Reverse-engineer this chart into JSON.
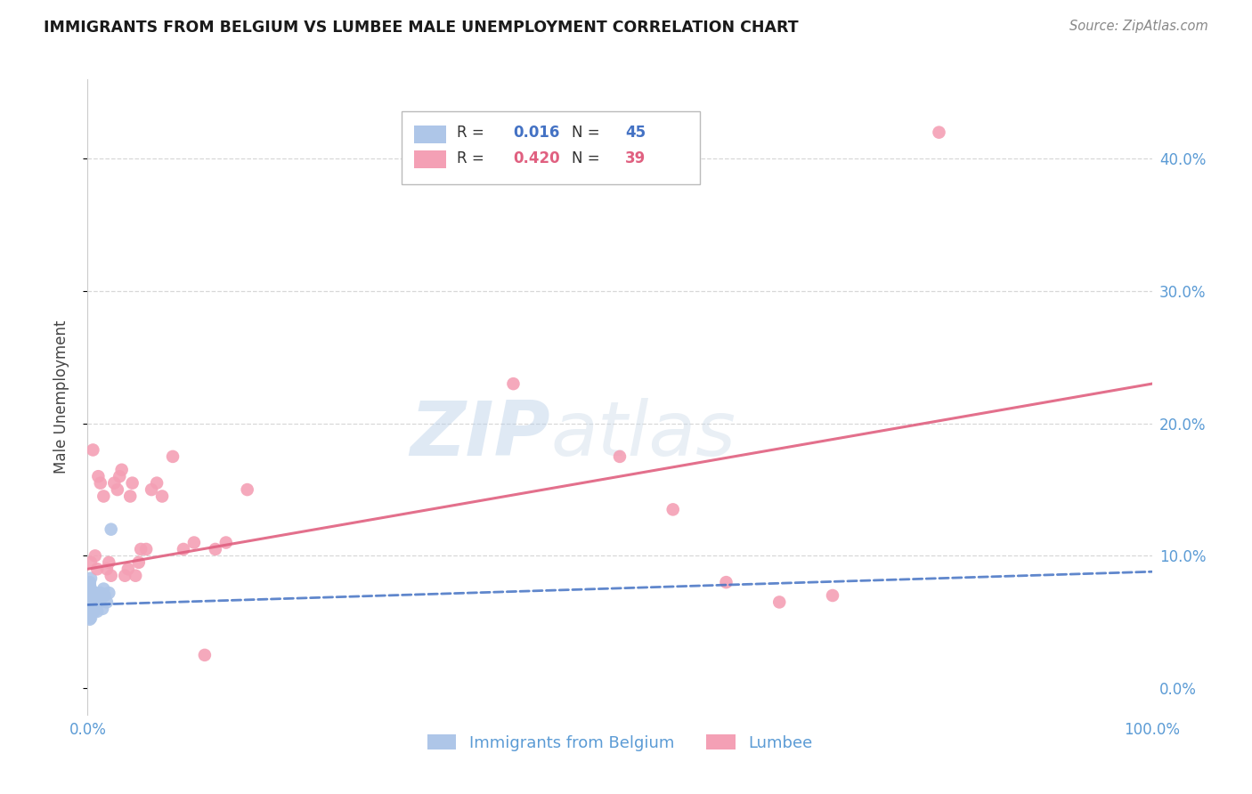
{
  "title": "IMMIGRANTS FROM BELGIUM VS LUMBEE MALE UNEMPLOYMENT CORRELATION CHART",
  "source": "Source: ZipAtlas.com",
  "ylabel": "Male Unemployment",
  "xlim": [
    0.0,
    1.0
  ],
  "ylim": [
    -0.02,
    0.46
  ],
  "yticks": [
    0.0,
    0.1,
    0.2,
    0.3,
    0.4
  ],
  "ytick_labels_right": [
    "0.0%",
    "10.0%",
    "20.0%",
    "30.0%",
    "40.0%"
  ],
  "xticks": [
    0.0,
    0.2,
    0.4,
    0.6,
    0.8,
    1.0
  ],
  "xtick_labels": [
    "0.0%",
    "",
    "",
    "",
    "",
    "100.0%"
  ],
  "blue_R": "0.016",
  "blue_N": "45",
  "pink_R": "0.420",
  "pink_N": "39",
  "blue_color": "#aec6e8",
  "pink_color": "#f4a0b5",
  "blue_line_color": "#4472c4",
  "pink_line_color": "#e06080",
  "axis_color": "#5b9bd5",
  "legend_blue_label": "Immigrants from Belgium",
  "legend_pink_label": "Lumbee",
  "watermark_zip": "ZIP",
  "watermark_atlas": "atlas",
  "grid_color": "#d8d8d8",
  "blue_scatter_x": [
    0.001,
    0.001,
    0.001,
    0.001,
    0.001,
    0.002,
    0.002,
    0.002,
    0.002,
    0.002,
    0.002,
    0.002,
    0.002,
    0.002,
    0.002,
    0.003,
    0.003,
    0.003,
    0.003,
    0.003,
    0.003,
    0.003,
    0.004,
    0.004,
    0.004,
    0.004,
    0.005,
    0.005,
    0.006,
    0.006,
    0.007,
    0.007,
    0.008,
    0.008,
    0.009,
    0.01,
    0.011,
    0.012,
    0.013,
    0.014,
    0.015,
    0.016,
    0.018,
    0.02,
    0.022
  ],
  "blue_scatter_y": [
    0.065,
    0.07,
    0.075,
    0.06,
    0.055,
    0.08,
    0.068,
    0.063,
    0.058,
    0.073,
    0.055,
    0.062,
    0.067,
    0.052,
    0.078,
    0.07,
    0.065,
    0.06,
    0.075,
    0.058,
    0.053,
    0.083,
    0.068,
    0.063,
    0.058,
    0.073,
    0.065,
    0.06,
    0.07,
    0.058,
    0.065,
    0.072,
    0.068,
    0.062,
    0.058,
    0.07,
    0.065,
    0.072,
    0.068,
    0.06,
    0.075,
    0.07,
    0.065,
    0.072,
    0.12
  ],
  "pink_scatter_x": [
    0.003,
    0.005,
    0.007,
    0.009,
    0.01,
    0.012,
    0.015,
    0.018,
    0.02,
    0.022,
    0.025,
    0.028,
    0.03,
    0.032,
    0.035,
    0.038,
    0.04,
    0.042,
    0.045,
    0.048,
    0.05,
    0.055,
    0.06,
    0.065,
    0.07,
    0.08,
    0.09,
    0.1,
    0.11,
    0.12,
    0.13,
    0.15,
    0.4,
    0.5,
    0.55,
    0.6,
    0.65,
    0.7,
    0.8
  ],
  "pink_scatter_y": [
    0.095,
    0.18,
    0.1,
    0.09,
    0.16,
    0.155,
    0.145,
    0.09,
    0.095,
    0.085,
    0.155,
    0.15,
    0.16,
    0.165,
    0.085,
    0.09,
    0.145,
    0.155,
    0.085,
    0.095,
    0.105,
    0.105,
    0.15,
    0.155,
    0.145,
    0.175,
    0.105,
    0.11,
    0.025,
    0.105,
    0.11,
    0.15,
    0.23,
    0.175,
    0.135,
    0.08,
    0.065,
    0.07,
    0.42
  ],
  "blue_trend_x": [
    0.0,
    1.0
  ],
  "blue_trend_y": [
    0.063,
    0.088
  ],
  "pink_trend_x": [
    0.0,
    1.0
  ],
  "pink_trend_y": [
    0.09,
    0.23
  ]
}
